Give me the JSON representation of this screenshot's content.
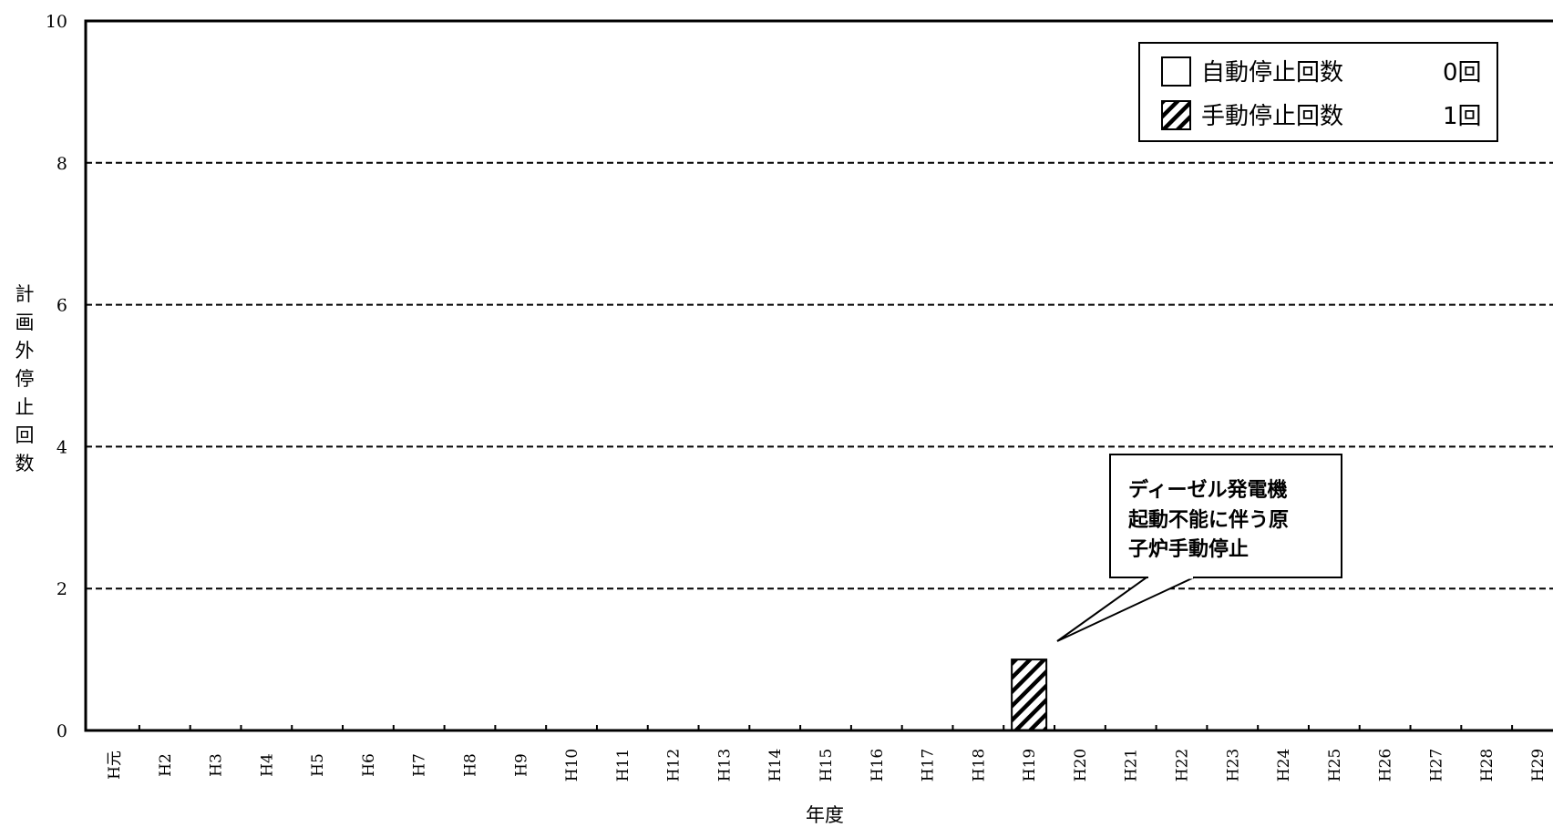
{
  "chart_data": {
    "type": "bar",
    "title": "",
    "xlabel": "年度",
    "ylabel": "計画外停止回数",
    "ylim": [
      0,
      10
    ],
    "yticks": [
      0,
      2,
      4,
      6,
      8,
      10
    ],
    "grid": "horizontal dashed",
    "categories": [
      "H元",
      "H2",
      "H3",
      "H4",
      "H5",
      "H6",
      "H7",
      "H8",
      "H9",
      "H10",
      "H11",
      "H12",
      "H13",
      "H14",
      "H15",
      "H16",
      "H17",
      "H18",
      "H19",
      "H20",
      "H21",
      "H22",
      "H23",
      "H24",
      "H25",
      "H26",
      "H27",
      "H28",
      "H29"
    ],
    "series": [
      {
        "name": "自動停止回数",
        "pattern": "blank",
        "values": [
          0,
          0,
          0,
          0,
          0,
          0,
          0,
          0,
          0,
          0,
          0,
          0,
          0,
          0,
          0,
          0,
          0,
          0,
          0,
          0,
          0,
          0,
          0,
          0,
          0,
          0,
          0,
          0,
          0
        ]
      },
      {
        "name": "手動停止回数",
        "pattern": "hatched",
        "values": [
          0,
          0,
          0,
          0,
          0,
          0,
          0,
          0,
          0,
          0,
          0,
          0,
          0,
          0,
          0,
          0,
          0,
          0,
          1,
          0,
          0,
          0,
          0,
          0,
          0,
          0,
          0,
          0,
          0
        ]
      }
    ],
    "legend": {
      "position": "top-right",
      "entries": [
        {
          "label": "自動停止回数",
          "total": "0回"
        },
        {
          "label": "手動停止回数",
          "total": "1回"
        }
      ]
    },
    "annotation": {
      "category": "H19",
      "lines": [
        "ディーゼル発電機",
        "起動不能に伴う原",
        "子炉手動停止"
      ]
    }
  }
}
